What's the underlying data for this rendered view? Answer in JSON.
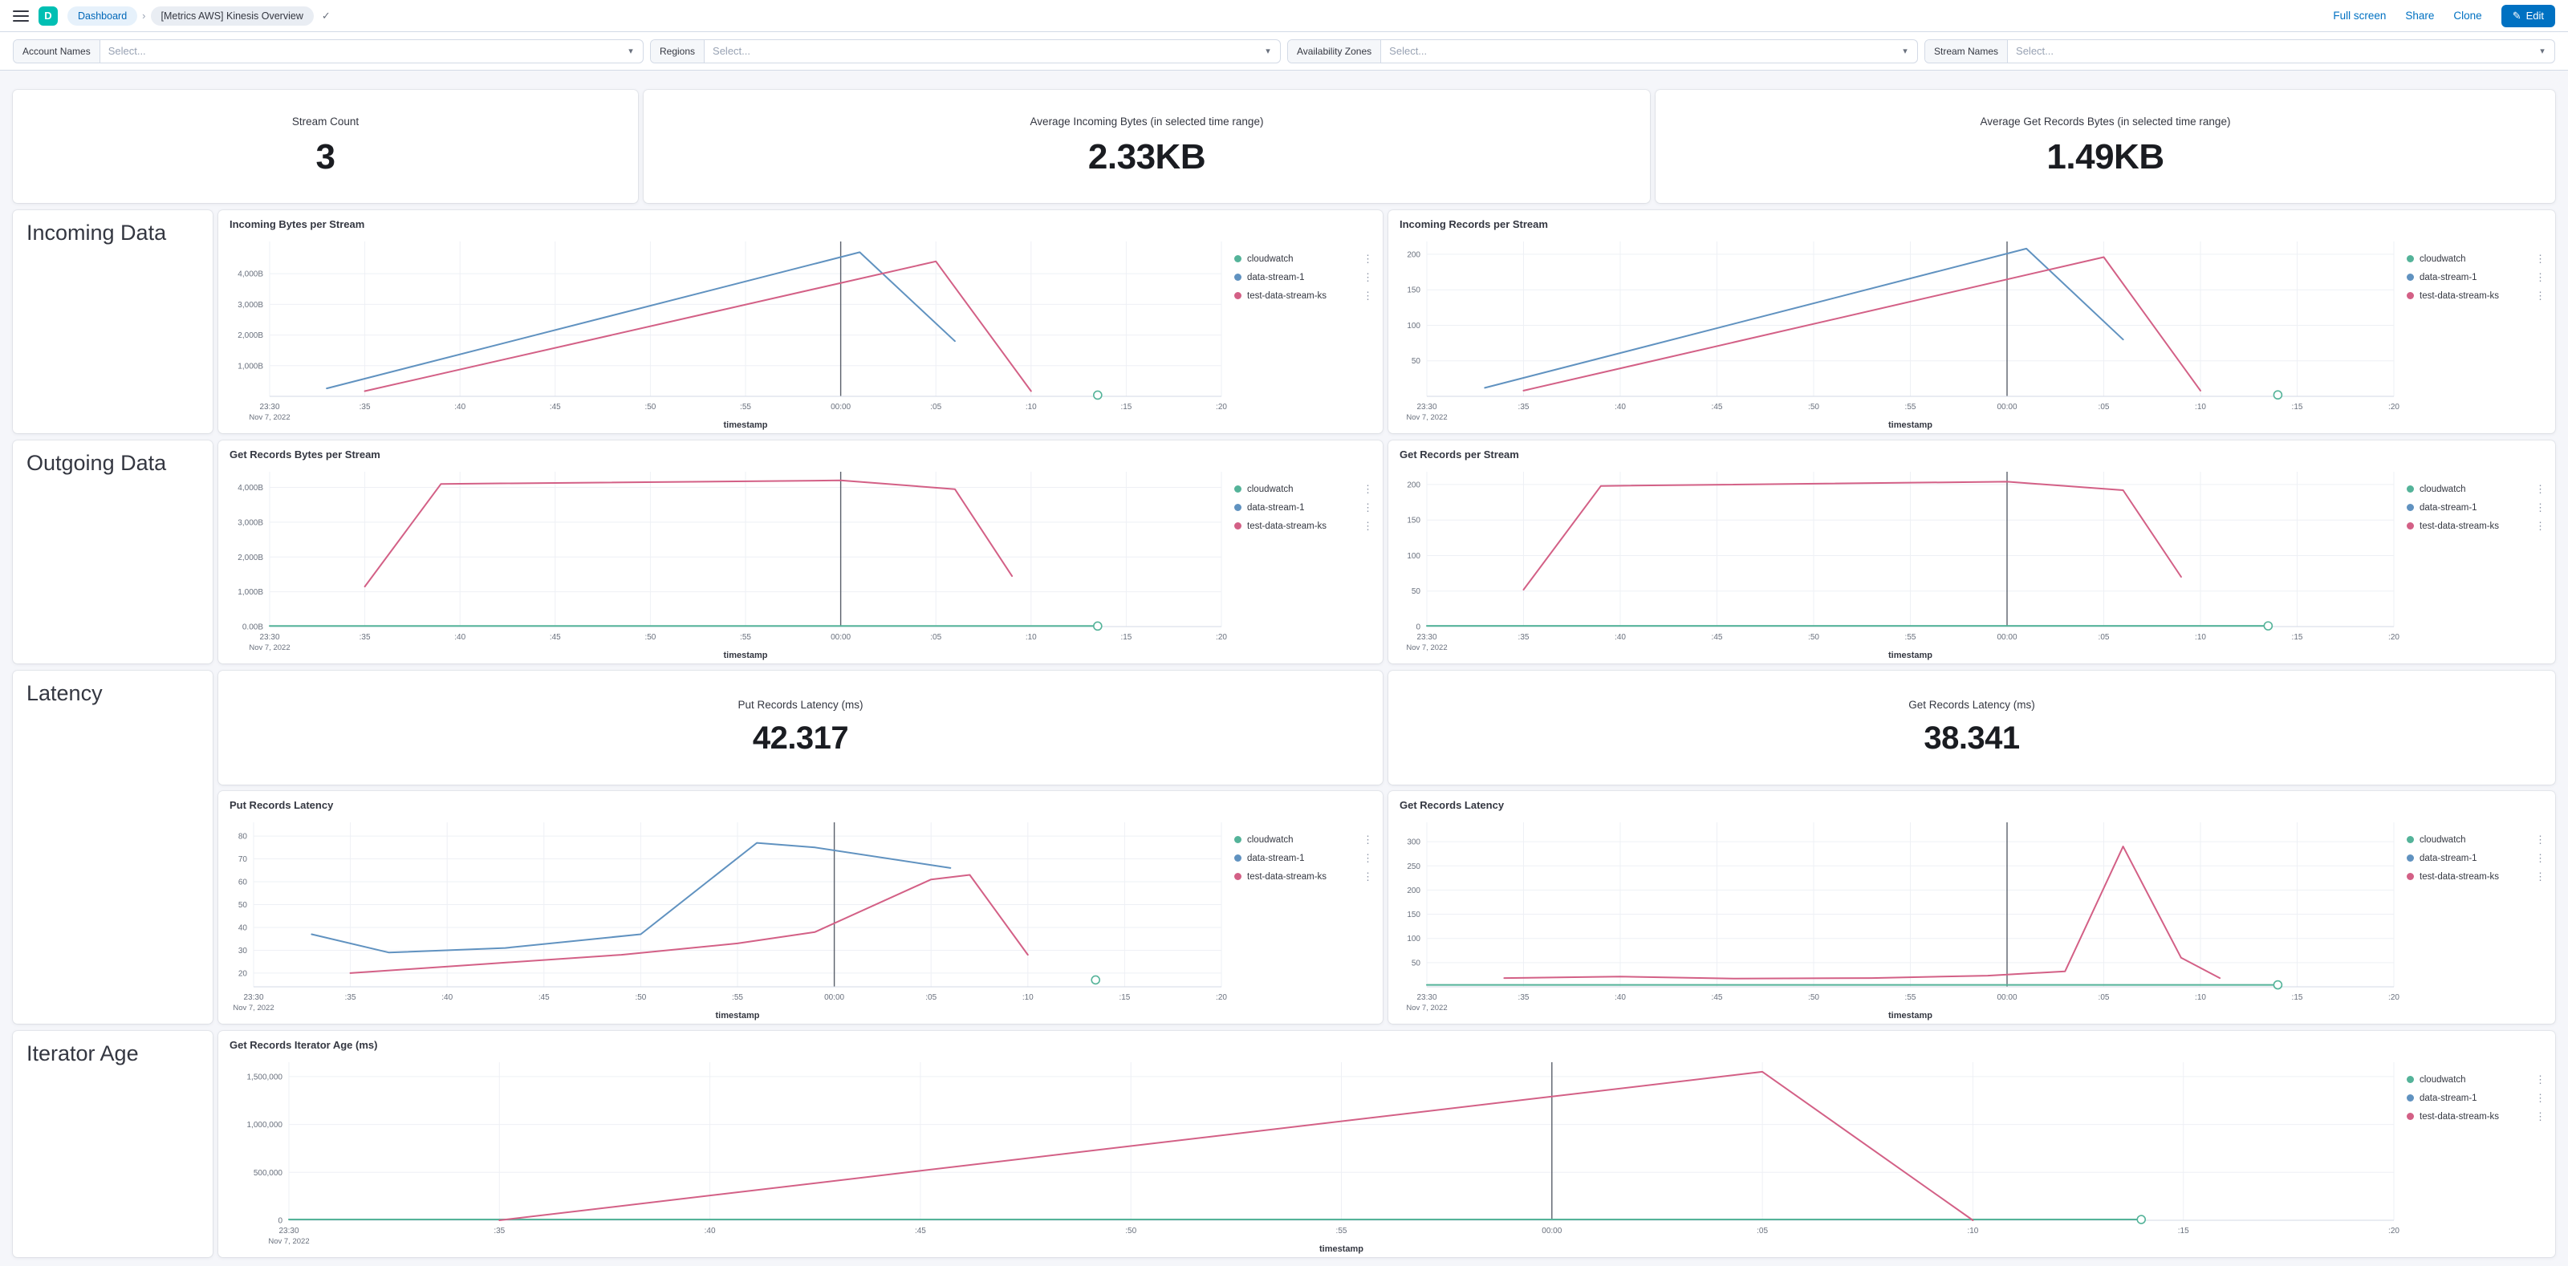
{
  "header": {
    "space_initial": "D",
    "breadcrumbs": [
      "Dashboard",
      "[Metrics AWS] Kinesis Overview"
    ],
    "actions": {
      "full_screen": "Full screen",
      "share": "Share",
      "clone": "Clone",
      "edit": "Edit"
    }
  },
  "filters": [
    {
      "label": "Account Names",
      "placeholder": "Select..."
    },
    {
      "label": "Regions",
      "placeholder": "Select..."
    },
    {
      "label": "Availability Zones",
      "placeholder": "Select..."
    },
    {
      "label": "Stream Names",
      "placeholder": "Select..."
    }
  ],
  "metric_cards": [
    {
      "title": "Stream Count",
      "value": "3"
    },
    {
      "title": "Average Incoming Bytes (in selected time range)",
      "value": "2.33KB"
    },
    {
      "title": "Average Get Records Bytes (in selected time range)",
      "value": "1.49KB"
    }
  ],
  "sections": {
    "incoming": "Incoming Data",
    "outgoing": "Outgoing Data",
    "latency": "Latency",
    "iterator": "Iterator Age"
  },
  "latency_metrics": [
    {
      "title": "Put Records Latency (ms)",
      "value": "42.317"
    },
    {
      "title": "Get Records Latency (ms)",
      "value": "38.341"
    }
  ],
  "series_colors": {
    "cloudwatch": "#54B399",
    "data-stream-1": "#6092C0",
    "test-data-stream-ks": "#D36086"
  },
  "time_axis": {
    "unit": "minutes after 23:30 on Nov 7, 2022",
    "xlim": [
      0,
      50
    ],
    "marker_minute": 30,
    "date_label": "Nov 7, 2022",
    "ticks": [
      {
        "m": 0,
        "label": "23:30"
      },
      {
        "m": 5,
        "label": ":35"
      },
      {
        "m": 10,
        "label": ":40"
      },
      {
        "m": 15,
        "label": ":45"
      },
      {
        "m": 20,
        "label": ":50"
      },
      {
        "m": 25,
        "label": ":55"
      },
      {
        "m": 30,
        "label": "00:00"
      },
      {
        "m": 35,
        "label": ":05"
      },
      {
        "m": 40,
        "label": ":10"
      },
      {
        "m": 45,
        "label": ":15"
      },
      {
        "m": 50,
        "label": ":20"
      }
    ]
  },
  "chart_data": [
    {
      "id": "incoming-bytes-per-stream",
      "type": "line",
      "title": "Incoming Bytes per Stream",
      "xlabel": "timestamp",
      "ylim": [
        0,
        5050
      ],
      "yaxis_width": 64,
      "yticks": [
        {
          "v": 1000,
          "label": "1,000B"
        },
        {
          "v": 2000,
          "label": "2,000B"
        },
        {
          "v": 3000,
          "label": "3,000B"
        },
        {
          "v": 4000,
          "label": "4,000B"
        }
      ],
      "legend": [
        "cloudwatch",
        "data-stream-1",
        "test-data-stream-ks"
      ],
      "series": [
        {
          "name": "cloudwatch",
          "style": "point",
          "points": [
            [
              43.5,
              40
            ]
          ]
        },
        {
          "name": "data-stream-1",
          "points": [
            [
              3,
              260
            ],
            [
              31,
              4700
            ],
            [
              36,
              1800
            ]
          ]
        },
        {
          "name": "test-data-stream-ks",
          "points": [
            [
              5,
              170
            ],
            [
              35,
              4400
            ],
            [
              40,
              170
            ]
          ]
        }
      ]
    },
    {
      "id": "incoming-records-per-stream",
      "type": "line",
      "title": "Incoming Records per Stream",
      "xlabel": "timestamp",
      "ylim": [
        0,
        218
      ],
      "yaxis_width": 48,
      "yticks": [
        {
          "v": 50,
          "label": "50"
        },
        {
          "v": 100,
          "label": "100"
        },
        {
          "v": 150,
          "label": "150"
        },
        {
          "v": 200,
          "label": "200"
        }
      ],
      "legend": [
        "cloudwatch",
        "data-stream-1",
        "test-data-stream-ks"
      ],
      "series": [
        {
          "name": "cloudwatch",
          "style": "point",
          "points": [
            [
              44,
              2
            ]
          ]
        },
        {
          "name": "data-stream-1",
          "points": [
            [
              3,
              12
            ],
            [
              31,
              208
            ],
            [
              36,
              80
            ]
          ]
        },
        {
          "name": "test-data-stream-ks",
          "points": [
            [
              5,
              8
            ],
            [
              35,
              196
            ],
            [
              40,
              8
            ]
          ]
        }
      ]
    },
    {
      "id": "get-records-bytes-per-stream",
      "type": "line",
      "title": "Get Records Bytes per Stream",
      "xlabel": "timestamp",
      "ylim": [
        0,
        4450
      ],
      "yaxis_width": 64,
      "yticks": [
        {
          "v": 0,
          "label": "0.00B"
        },
        {
          "v": 1000,
          "label": "1,000B"
        },
        {
          "v": 2000,
          "label": "2,000B"
        },
        {
          "v": 3000,
          "label": "3,000B"
        },
        {
          "v": 4000,
          "label": "4,000B"
        }
      ],
      "legend": [
        "cloudwatch",
        "data-stream-1",
        "test-data-stream-ks"
      ],
      "series": [
        {
          "name": "cloudwatch",
          "marker_end": true,
          "points": [
            [
              0,
              15
            ],
            [
              43.5,
              15
            ]
          ]
        },
        {
          "name": "test-data-stream-ks",
          "points": [
            [
              5,
              1150
            ],
            [
              9,
              4100
            ],
            [
              30,
              4200
            ],
            [
              36,
              3950
            ],
            [
              39,
              1450
            ]
          ]
        }
      ]
    },
    {
      "id": "get-records-per-stream",
      "type": "line",
      "title": "Get Records per Stream",
      "xlabel": "timestamp",
      "ylim": [
        0,
        218
      ],
      "yaxis_width": 48,
      "yticks": [
        {
          "v": 0,
          "label": "0"
        },
        {
          "v": 50,
          "label": "50"
        },
        {
          "v": 100,
          "label": "100"
        },
        {
          "v": 150,
          "label": "150"
        },
        {
          "v": 200,
          "label": "200"
        }
      ],
      "legend": [
        "cloudwatch",
        "data-stream-1",
        "test-data-stream-ks"
      ],
      "series": [
        {
          "name": "cloudwatch",
          "marker_end": true,
          "points": [
            [
              0,
              1
            ],
            [
              43.5,
              1
            ]
          ]
        },
        {
          "name": "test-data-stream-ks",
          "points": [
            [
              5,
              52
            ],
            [
              9,
              198
            ],
            [
              30,
              204
            ],
            [
              36,
              192
            ],
            [
              39,
              70
            ]
          ]
        }
      ]
    },
    {
      "id": "put-records-latency",
      "type": "line",
      "title": "Put Records Latency",
      "xlabel": "timestamp",
      "ylim": [
        14,
        86
      ],
      "yaxis_width": 44,
      "yticks": [
        {
          "v": 20,
          "label": "20"
        },
        {
          "v": 30,
          "label": "30"
        },
        {
          "v": 40,
          "label": "40"
        },
        {
          "v": 50,
          "label": "50"
        },
        {
          "v": 60,
          "label": "60"
        },
        {
          "v": 70,
          "label": "70"
        },
        {
          "v": 80,
          "label": "80"
        }
      ],
      "legend": [
        "cloudwatch",
        "data-stream-1",
        "test-data-stream-ks"
      ],
      "series": [
        {
          "name": "cloudwatch",
          "style": "point",
          "points": [
            [
              43.5,
              17
            ]
          ]
        },
        {
          "name": "data-stream-1",
          "points": [
            [
              3,
              37
            ],
            [
              7,
              29
            ],
            [
              13,
              31
            ],
            [
              20,
              37
            ],
            [
              26,
              77
            ],
            [
              29,
              75
            ],
            [
              36,
              66
            ]
          ]
        },
        {
          "name": "test-data-stream-ks",
          "points": [
            [
              5,
              20
            ],
            [
              12,
              24
            ],
            [
              19,
              28
            ],
            [
              25,
              33
            ],
            [
              29,
              38
            ],
            [
              35,
              61
            ],
            [
              37,
              63
            ],
            [
              40,
              28
            ]
          ]
        }
      ]
    },
    {
      "id": "get-records-latency",
      "type": "line",
      "title": "Get Records Latency",
      "xlabel": "timestamp",
      "ylim": [
        0,
        340
      ],
      "yaxis_width": 48,
      "yticks": [
        {
          "v": 50,
          "label": "50"
        },
        {
          "v": 100,
          "label": "100"
        },
        {
          "v": 150,
          "label": "150"
        },
        {
          "v": 200,
          "label": "200"
        },
        {
          "v": 250,
          "label": "250"
        },
        {
          "v": 300,
          "label": "300"
        }
      ],
      "legend": [
        "cloudwatch",
        "data-stream-1",
        "test-data-stream-ks"
      ],
      "series": [
        {
          "name": "cloudwatch",
          "marker_end": true,
          "points": [
            [
              0,
              4
            ],
            [
              44,
              4
            ]
          ]
        },
        {
          "name": "test-data-stream-ks",
          "points": [
            [
              4,
              18
            ],
            [
              10,
              21
            ],
            [
              16,
              17
            ],
            [
              23,
              18
            ],
            [
              29,
              23
            ],
            [
              33,
              32
            ],
            [
              36,
              290
            ],
            [
              39,
              60
            ],
            [
              41,
              18
            ]
          ]
        }
      ]
    },
    {
      "id": "get-records-iterator-age",
      "type": "line",
      "title": "Get Records Iterator Age (ms)",
      "xlabel": "timestamp",
      "ylim": [
        0,
        1650000
      ],
      "yaxis_width": 88,
      "yticks": [
        {
          "v": 0,
          "label": "0"
        },
        {
          "v": 500000,
          "label": "500,000"
        },
        {
          "v": 1000000,
          "label": "1,000,000"
        },
        {
          "v": 1500000,
          "label": "1,500,000"
        }
      ],
      "legend": [
        "cloudwatch",
        "data-stream-1",
        "test-data-stream-ks"
      ],
      "series": [
        {
          "name": "cloudwatch",
          "marker_end": true,
          "points": [
            [
              0,
              8000
            ],
            [
              44,
              8000
            ]
          ]
        },
        {
          "name": "test-data-stream-ks",
          "points": [
            [
              5,
              0
            ],
            [
              35,
              1550000
            ],
            [
              40,
              0
            ]
          ]
        }
      ]
    }
  ]
}
